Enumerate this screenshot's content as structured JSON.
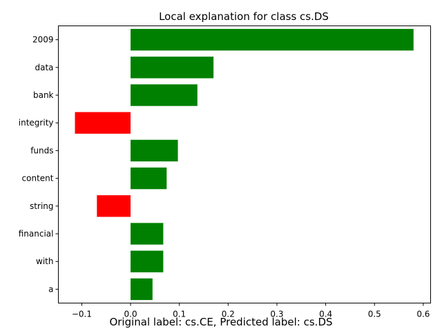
{
  "chart_data": {
    "type": "bar",
    "orientation": "horizontal",
    "title": "Local explanation for class cs.DS",
    "categories": [
      "2009",
      "data",
      "bank",
      "integrity",
      "funds",
      "content",
      "string",
      "financial",
      "with",
      "a"
    ],
    "values": [
      0.58,
      0.17,
      0.137,
      -0.114,
      0.097,
      0.074,
      -0.069,
      0.067,
      0.067,
      0.045
    ],
    "xlim": [
      -0.148,
      0.615
    ],
    "xticks": [
      -0.1,
      0.0,
      0.1,
      0.2,
      0.3,
      0.4,
      0.5,
      0.6
    ],
    "xtick_labels": [
      "−0.1",
      "0.0",
      "0.1",
      "0.2",
      "0.3",
      "0.4",
      "0.5",
      "0.6"
    ],
    "positive_color": "#008000",
    "negative_color": "#ff0000",
    "grid": false
  },
  "caption": "Original label: cs.CE, Predicted label: cs.DS"
}
